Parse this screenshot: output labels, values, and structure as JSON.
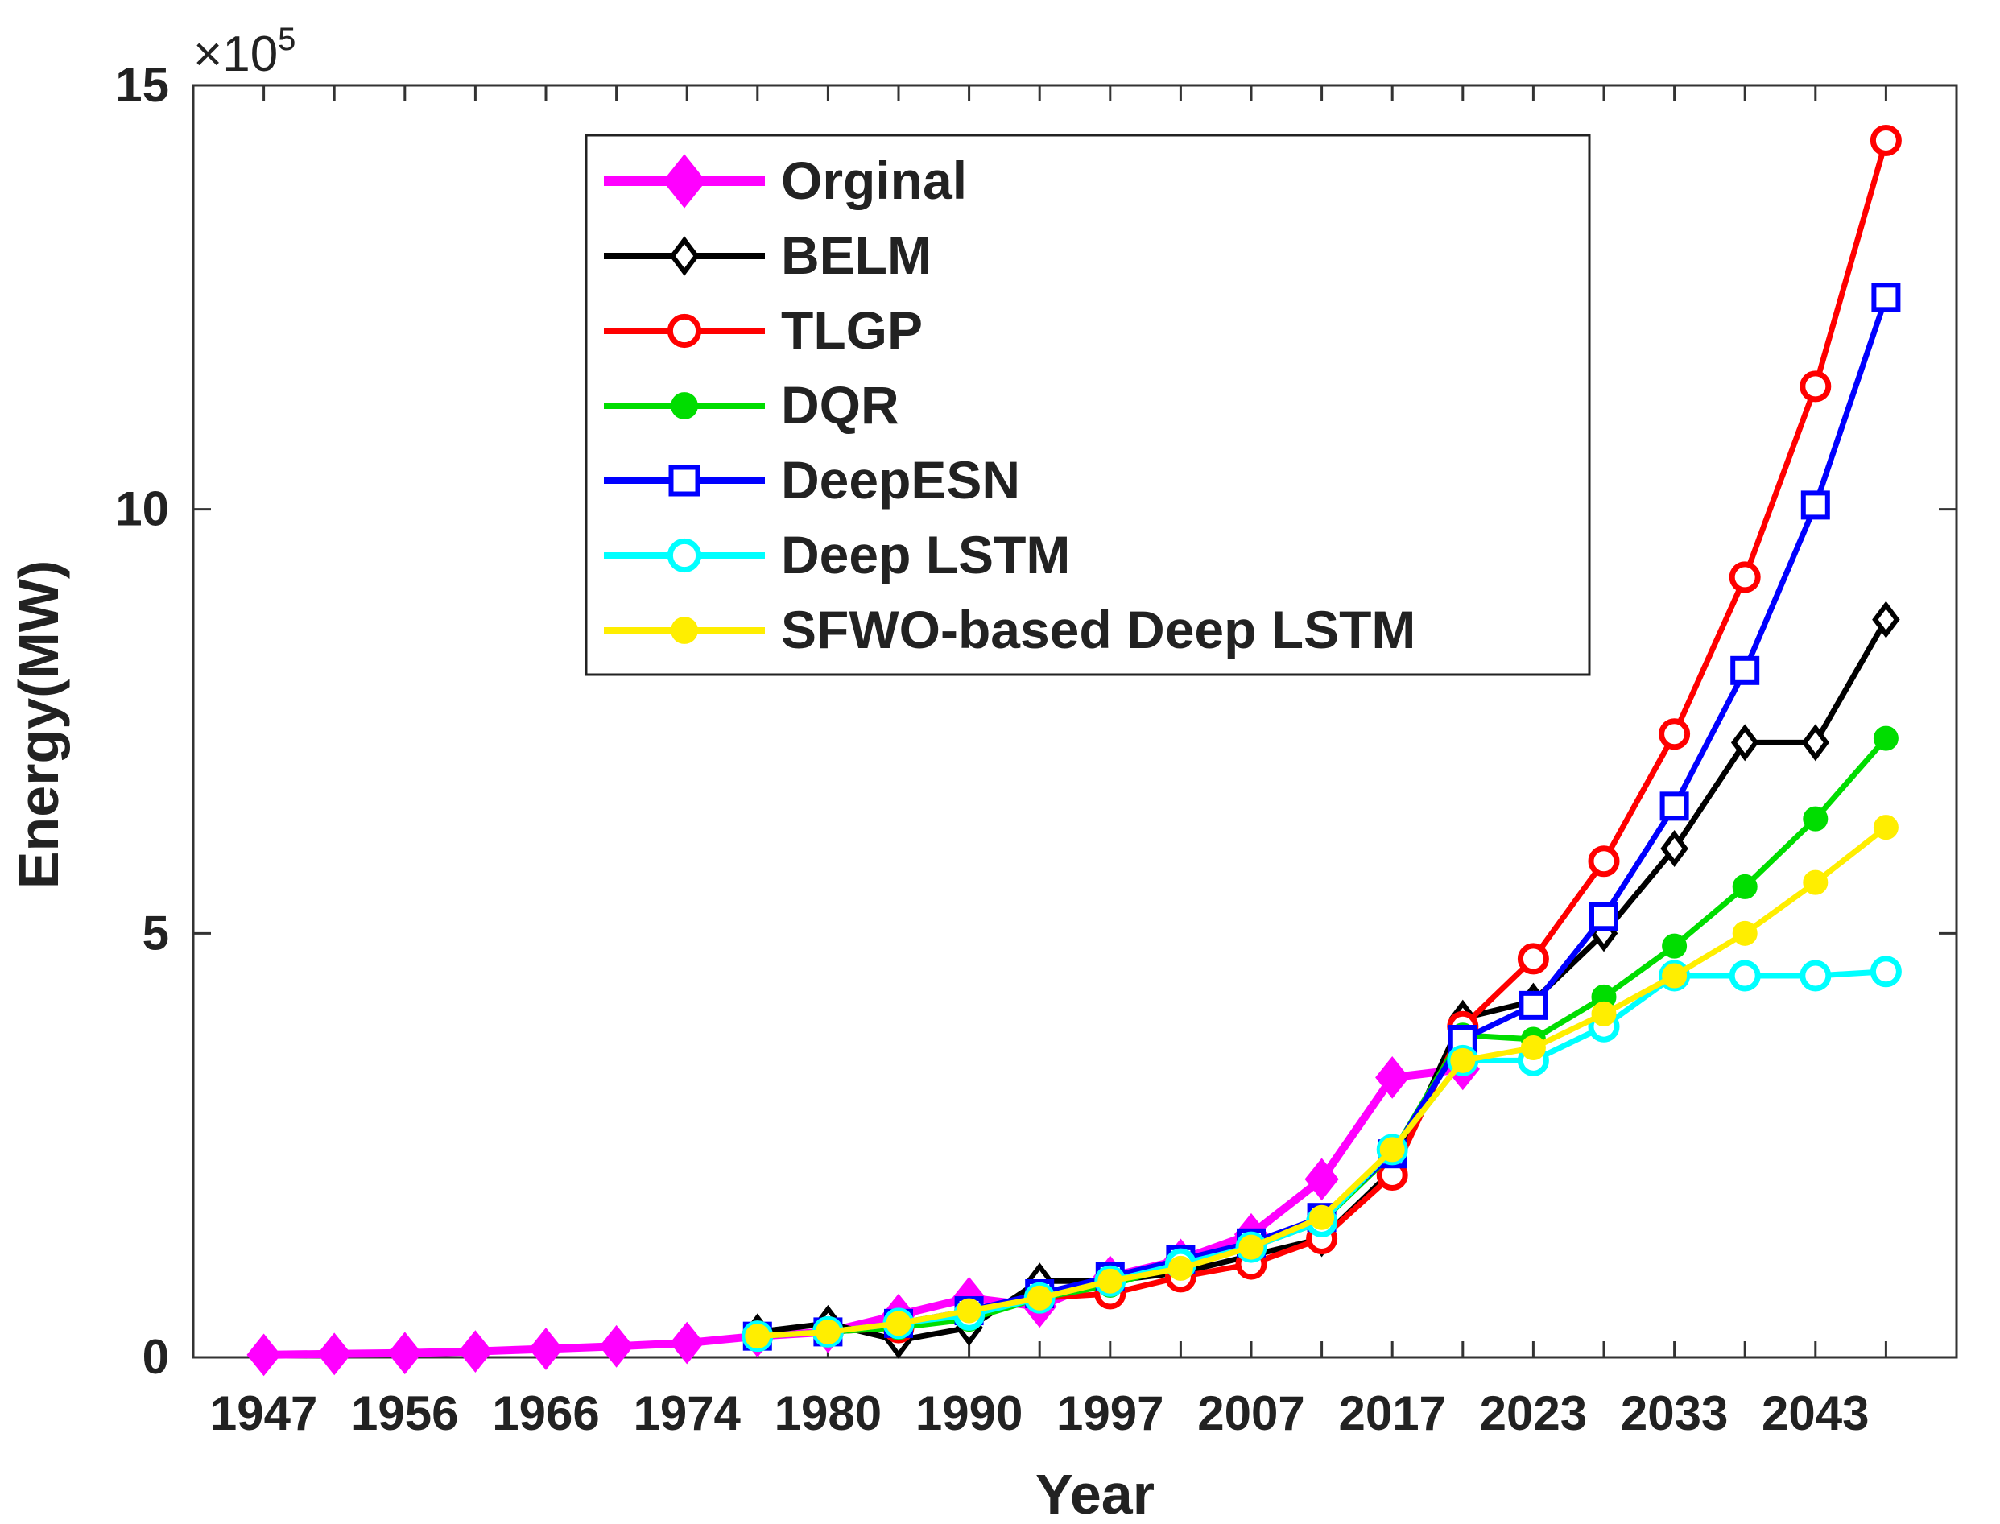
{
  "chart_data": {
    "type": "line",
    "title": "",
    "xlabel": "Year",
    "ylabel": "Energy(MW)",
    "y_exponent_label": "×10",
    "y_exponent_power": "5",
    "y_scale": 100000,
    "ylim": [
      0,
      1500000
    ],
    "y_ticks": [
      0,
      500000,
      1000000,
      1500000
    ],
    "y_tick_labels": [
      "0",
      "5",
      "10",
      "15"
    ],
    "x_tick_labels": [
      "1947",
      "1956",
      "1966",
      "1974",
      "1980",
      "1990",
      "1997",
      "2007",
      "2017",
      "2023",
      "2033",
      "2043"
    ],
    "x_tick_label_positions": [
      1,
      3,
      5,
      7,
      9,
      11,
      13,
      15,
      17,
      19,
      21,
      23
    ],
    "x_index_range": [
      0,
      25
    ],
    "grid": false,
    "legend_position": "top-center",
    "series": [
      {
        "name": "Orginal",
        "color": "#ff00ff",
        "marker": "diamond-filled",
        "start_index": 1,
        "values": [
          3000,
          4000,
          5000,
          7000,
          10000,
          13000,
          17000,
          25000,
          30000,
          50000,
          70000,
          60000,
          95000,
          115000,
          145000,
          210000,
          330000,
          340000
        ]
      },
      {
        "name": "BELM",
        "color": "#000000",
        "marker": "diamond-open",
        "start_index": 8,
        "values": [
          30000,
          40000,
          20000,
          35000,
          90000,
          90000,
          100000,
          120000,
          140000,
          220000,
          400000,
          420000,
          500000,
          600000,
          725000,
          725000,
          870000
        ]
      },
      {
        "name": "TLGP",
        "color": "#ff0000",
        "marker": "circle-open",
        "start_index": 8,
        "values": [
          25000,
          30000,
          35000,
          50000,
          70000,
          75000,
          95000,
          110000,
          140000,
          215000,
          390000,
          470000,
          585000,
          735000,
          920000,
          1145000,
          1435000
        ]
      },
      {
        "name": "DQR",
        "color": "#00dd00",
        "marker": "dot-filled",
        "start_index": 8,
        "values": [
          25000,
          30000,
          35000,
          45000,
          70000,
          85000,
          110000,
          130000,
          160000,
          240000,
          380000,
          375000,
          425000,
          485000,
          555000,
          635000,
          730000
        ]
      },
      {
        "name": "DeepESN",
        "color": "#0000ff",
        "marker": "square-open",
        "start_index": 8,
        "values": [
          25000,
          30000,
          40000,
          55000,
          75000,
          95000,
          115000,
          135000,
          165000,
          240000,
          375000,
          415000,
          520000,
          650000,
          810000,
          1005000,
          1250000
        ]
      },
      {
        "name": "Deep LSTM",
        "color": "#00ffff",
        "marker": "circle-open",
        "start_index": 8,
        "values": [
          25000,
          30000,
          40000,
          50000,
          70000,
          90000,
          110000,
          130000,
          160000,
          245000,
          350000,
          350000,
          390000,
          450000,
          450000,
          450000,
          455000
        ]
      },
      {
        "name": "SFWO-based Deep LSTM",
        "color": "#ffee00",
        "marker": "dot-filled",
        "start_index": 8,
        "values": [
          25000,
          30000,
          40000,
          55000,
          70000,
          90000,
          105000,
          130000,
          165000,
          245000,
          350000,
          365000,
          405000,
          450000,
          500000,
          560000,
          625000
        ]
      }
    ]
  }
}
